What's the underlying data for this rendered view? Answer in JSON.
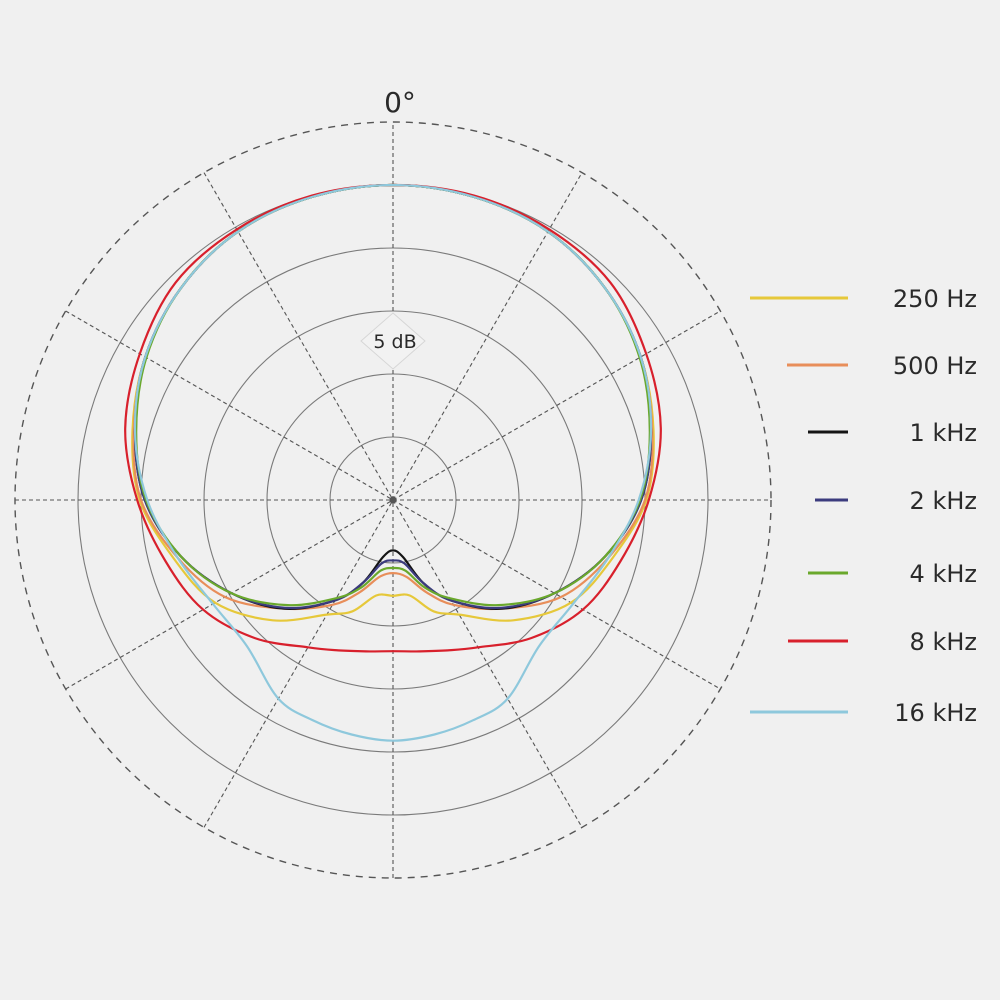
{
  "chart_data": {
    "type": "polar-line",
    "angle_label": "0°",
    "radial_step_label": "5 dB",
    "radial_range_db": [
      -25,
      5
    ],
    "radial_step_db": 5,
    "angular_grid_step_deg": 30,
    "grid": true,
    "legend_position": "right",
    "symmetric": true,
    "angles_deg": [
      0,
      15,
      30,
      45,
      60,
      75,
      90,
      105,
      120,
      135,
      150,
      160,
      170,
      180
    ],
    "series": [
      {
        "name": "250 Hz",
        "color": "#e6c83a",
        "values_db": [
          0,
          -0.1,
          -0.4,
          -1.2,
          -2.3,
          -3.6,
          -4.9,
          -7.0,
          -8.7,
          -11.5,
          -14.5,
          -15.6,
          -17.3,
          -17.4
        ]
      },
      {
        "name": "500 Hz",
        "color": "#e88e5a",
        "values_db": [
          0,
          -0.1,
          -0.4,
          -1.2,
          -2.3,
          -3.7,
          -5.0,
          -7.3,
          -9.6,
          -12.8,
          -15.4,
          -17.2,
          -18.8,
          -19.2
        ]
      },
      {
        "name": "1 kHz",
        "color": "#141414",
        "values_db": [
          0,
          -0.1,
          -0.4,
          -1.2,
          -2.3,
          -3.8,
          -5.3,
          -7.6,
          -10.2,
          -12.8,
          -15.8,
          -18.0,
          -20.4,
          -21.0
        ]
      },
      {
        "name": "2 kHz",
        "color": "#3b3b7e",
        "values_db": [
          0,
          -0.1,
          -0.4,
          -1.2,
          -2.3,
          -3.8,
          -5.3,
          -7.6,
          -10.2,
          -12.9,
          -15.8,
          -18.0,
          -19.9,
          -20.2
        ]
      },
      {
        "name": "4 kHz",
        "color": "#6aa82c",
        "values_db": [
          0,
          -0.1,
          -0.4,
          -1.2,
          -2.4,
          -3.9,
          -5.4,
          -7.6,
          -10.2,
          -13.2,
          -16.0,
          -17.6,
          -19.3,
          -19.6
        ]
      },
      {
        "name": "8 kHz",
        "color": "#d8202c",
        "values_db": [
          0,
          0,
          -0.2,
          -0.6,
          -1.8,
          -3.0,
          -4.7,
          -6.3,
          -7.6,
          -9.5,
          -11.5,
          -12.3,
          -12.8,
          -13.0
        ]
      },
      {
        "name": "16 kHz",
        "color": "#8ec8dc",
        "values_db": [
          0,
          -0.1,
          -0.4,
          -1.2,
          -2.3,
          -3.8,
          -5.5,
          -7.3,
          -8.5,
          -8.6,
          -6.8,
          -6.4,
          -6.1,
          -5.9
        ]
      }
    ]
  }
}
